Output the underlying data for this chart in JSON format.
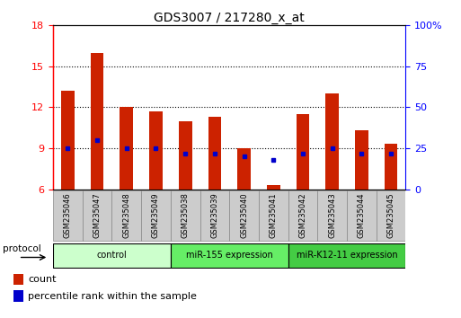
{
  "title": "GDS3007 / 217280_x_at",
  "samples": [
    "GSM235046",
    "GSM235047",
    "GSM235048",
    "GSM235049",
    "GSM235038",
    "GSM235039",
    "GSM235040",
    "GSM235041",
    "GSM235042",
    "GSM235043",
    "GSM235044",
    "GSM235045"
  ],
  "count_values": [
    13.2,
    16.0,
    12.0,
    11.7,
    11.0,
    11.3,
    9.0,
    6.3,
    11.5,
    13.0,
    10.3,
    9.3
  ],
  "percentile_values": [
    25,
    30,
    25,
    25,
    22,
    22,
    20,
    18,
    22,
    25,
    22,
    22
  ],
  "ylim_left": [
    6,
    18
  ],
  "ylim_right": [
    0,
    100
  ],
  "yticks_left": [
    6,
    9,
    12,
    15,
    18
  ],
  "yticks_right": [
    0,
    25,
    50,
    75,
    100
  ],
  "ytick_labels_right": [
    "0",
    "25",
    "50",
    "75",
    "100%"
  ],
  "bar_color": "#cc2200",
  "dot_color": "#0000cc",
  "bar_bottom": 6,
  "groups": [
    {
      "label": "control",
      "indices": [
        0,
        1,
        2,
        3
      ],
      "color_light": "#ccffcc",
      "color_dark": "#66ee66"
    },
    {
      "label": "miR-155 expression",
      "indices": [
        4,
        5,
        6,
        7
      ],
      "color_light": "#66ee66",
      "color_dark": "#44cc44"
    },
    {
      "label": "miR-K12-11 expression",
      "indices": [
        8,
        9,
        10,
        11
      ],
      "color_light": "#44cc44",
      "color_dark": "#22bb22"
    }
  ],
  "protocol_label": "protocol",
  "legend_count": "count",
  "legend_percentile": "percentile rank within the sample",
  "bar_width": 0.45
}
